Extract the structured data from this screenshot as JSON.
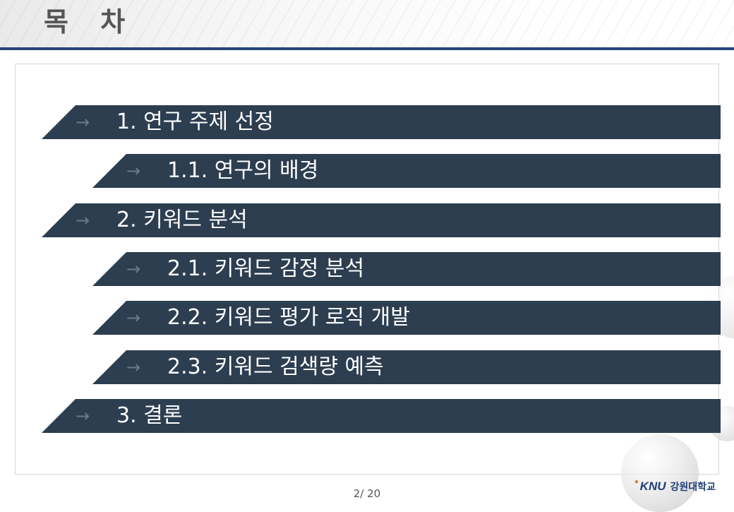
{
  "slide": {
    "title": "목 차",
    "page_number": "2/ 20"
  },
  "toc": {
    "arrow_glyph": "→",
    "items": [
      {
        "label": "1. 연구 주제 선정",
        "level": 1
      },
      {
        "label": "1.1. 연구의 배경",
        "level": 2
      },
      {
        "label": "2. 키워드 분석",
        "level": 1
      },
      {
        "label": "2.1. 키워드 감정 분석",
        "level": 2
      },
      {
        "label": "2.2. 키워드 평가 로직 개발",
        "level": 2
      },
      {
        "label": "2.3. 키워드 검색량 예측",
        "level": 2
      },
      {
        "label": "3. 결론",
        "level": 1
      }
    ]
  },
  "logo": {
    "mark": "KNU",
    "name": "강원대학교"
  },
  "colors": {
    "bar": "#2c3e50",
    "title_rule": "#24457a",
    "title_text": "#555555",
    "logo": "#1f3f78",
    "logo_accent": "#e0782b"
  }
}
